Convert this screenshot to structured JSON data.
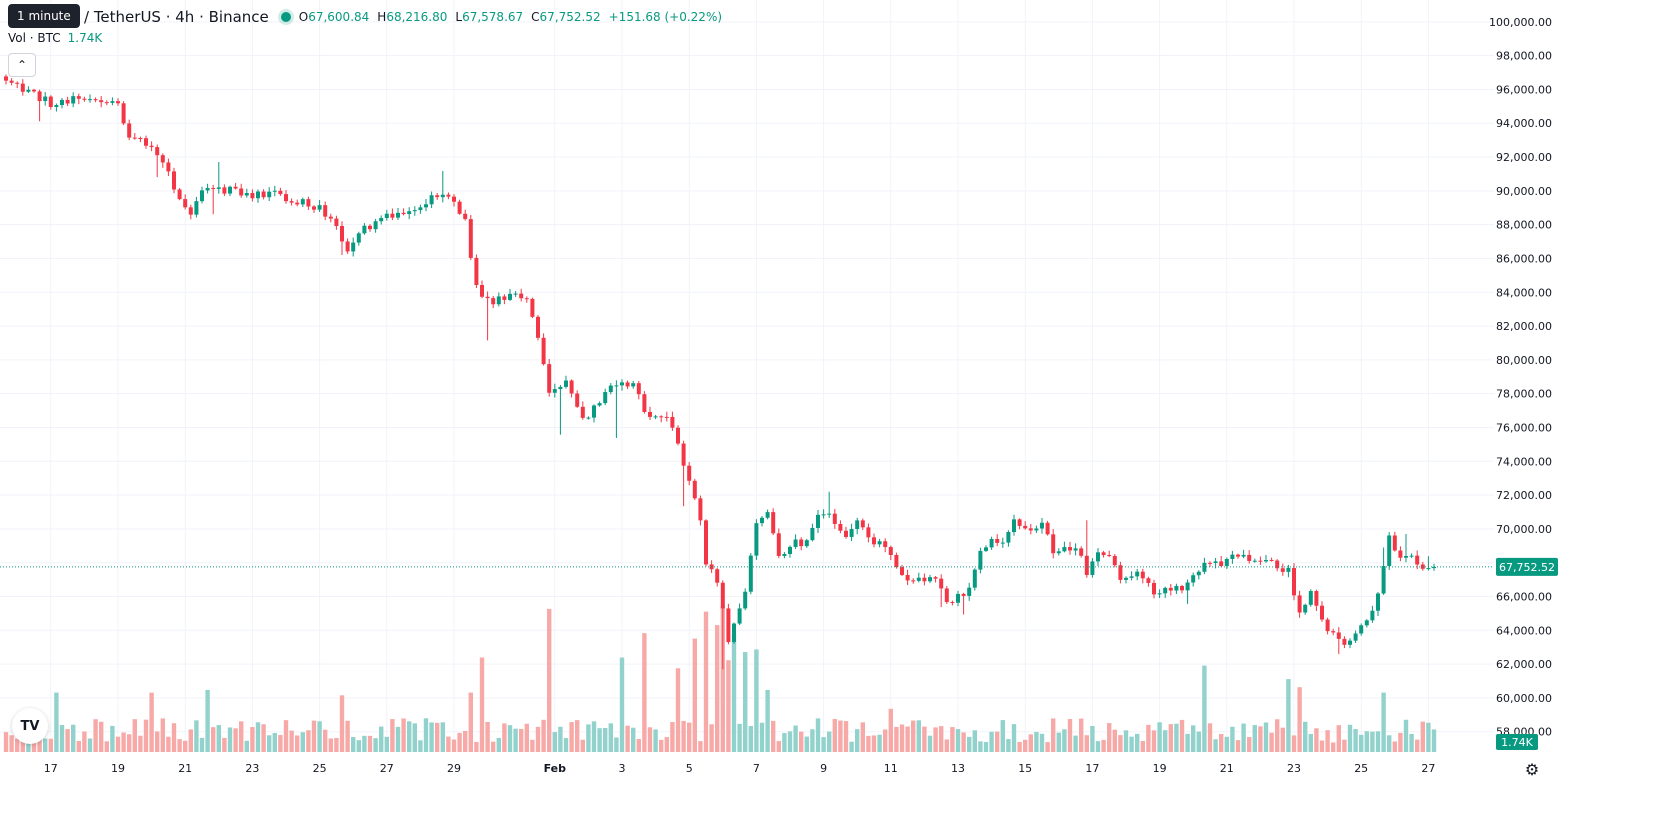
{
  "header": {
    "tooltip": "1 minute",
    "symbol": "/ TetherUS · 4h · Binance",
    "ohlc": {
      "o_label": "O",
      "o": "67,600.84",
      "h_label": "H",
      "h": "68,216.80",
      "l_label": "L",
      "l": "67,578.67",
      "c_label": "C",
      "c": "67,752.52",
      "change": "+151.68 (+0.22%)"
    },
    "volume_label": "Vol · BTC",
    "volume_value": "1.74K"
  },
  "icons": {
    "collapse": "chevron-up-icon",
    "logo": "tradingview-logo",
    "settings": "gear-icon"
  },
  "colors": {
    "up": "#089981",
    "down": "#F23645",
    "up_vol": "#92D2CC",
    "down_vol": "#F7A9A7",
    "grid": "#F0F3FA",
    "last_price": "#089981"
  },
  "chart_data": {
    "type": "candlestick",
    "interval": "4h",
    "price_axis": {
      "ylim": [
        56800,
        100700
      ],
      "ticks": [
        "58,000.00",
        "60,000.00",
        "62,000.00",
        "64,000.00",
        "66,000.00",
        "68,000.00",
        "70,000.00",
        "72,000.00",
        "74,000.00",
        "76,000.00",
        "78,000.00",
        "80,000.00",
        "82,000.00",
        "84,000.00",
        "86,000.00",
        "88,000.00",
        "90,000.00",
        "92,000.00",
        "94,000.00",
        "96,000.00",
        "98,000.00",
        "100,000.00"
      ],
      "tick_values": [
        58000,
        60000,
        62000,
        64000,
        66000,
        68000,
        70000,
        72000,
        74000,
        76000,
        78000,
        80000,
        82000,
        84000,
        86000,
        88000,
        90000,
        92000,
        94000,
        96000,
        98000,
        100000
      ]
    },
    "time_axis": {
      "labels": [
        "17",
        "19",
        "21",
        "23",
        "25",
        "27",
        "29",
        "Feb",
        "3",
        "5",
        "7",
        "9",
        "11",
        "13",
        "15",
        "17",
        "19",
        "21",
        "23",
        "25",
        "27"
      ],
      "bar_index": [
        8,
        20,
        32,
        44,
        56,
        68,
        80,
        98,
        110,
        122,
        134,
        146,
        158,
        170,
        182,
        194,
        206,
        218,
        230,
        242,
        254
      ]
    },
    "anchors": [
      [
        0,
        96500
      ],
      [
        4,
        95800
      ],
      [
        8,
        95200
      ],
      [
        12,
        95400
      ],
      [
        18,
        95200
      ],
      [
        20,
        95000
      ],
      [
        22,
        93200
      ],
      [
        26,
        92800
      ],
      [
        29,
        90900
      ],
      [
        31,
        89700
      ],
      [
        33,
        88600
      ],
      [
        35,
        90200
      ],
      [
        40,
        90000
      ],
      [
        44,
        89800
      ],
      [
        48,
        89900
      ],
      [
        52,
        89400
      ],
      [
        56,
        88900
      ],
      [
        59,
        87900
      ],
      [
        61,
        86600
      ],
      [
        64,
        87800
      ],
      [
        68,
        88500
      ],
      [
        72,
        88600
      ],
      [
        76,
        89700
      ],
      [
        79,
        89800
      ],
      [
        82,
        88200
      ],
      [
        84,
        84200
      ],
      [
        87,
        83300
      ],
      [
        90,
        84000
      ],
      [
        93,
        83800
      ],
      [
        95,
        81400
      ],
      [
        97,
        78200
      ],
      [
        100,
        78800
      ],
      [
        103,
        76400
      ],
      [
        106,
        77400
      ],
      [
        108,
        78600
      ],
      [
        112,
        78500
      ],
      [
        115,
        76500
      ],
      [
        118,
        76700
      ],
      [
        120,
        74800
      ],
      [
        122,
        73000
      ],
      [
        124,
        70400
      ],
      [
        125,
        68100
      ],
      [
        127,
        66700
      ],
      [
        129,
        63400
      ],
      [
        130,
        64600
      ],
      [
        132,
        66200
      ],
      [
        134,
        70300
      ],
      [
        136,
        70900
      ],
      [
        138,
        68200
      ],
      [
        140,
        69100
      ],
      [
        143,
        69200
      ],
      [
        145,
        70900
      ],
      [
        147,
        71000
      ],
      [
        150,
        69300
      ],
      [
        152,
        70500
      ],
      [
        155,
        69300
      ],
      [
        158,
        68600
      ],
      [
        160,
        67300
      ],
      [
        162,
        66900
      ],
      [
        164,
        67000
      ],
      [
        166,
        67300
      ],
      [
        168,
        65500
      ],
      [
        170,
        65900
      ],
      [
        172,
        66600
      ],
      [
        174,
        68900
      ],
      [
        176,
        69200
      ],
      [
        178,
        69400
      ],
      [
        180,
        70500
      ],
      [
        183,
        69900
      ],
      [
        185,
        70600
      ],
      [
        187,
        68800
      ],
      [
        189,
        68800
      ],
      [
        191,
        68800
      ],
      [
        193,
        67500
      ],
      [
        195,
        68400
      ],
      [
        197,
        68300
      ],
      [
        199,
        67100
      ],
      [
        201,
        67300
      ],
      [
        203,
        67300
      ],
      [
        205,
        66300
      ],
      [
        207,
        66300
      ],
      [
        209,
        66600
      ],
      [
        211,
        66600
      ],
      [
        214,
        67900
      ],
      [
        217,
        67800
      ],
      [
        220,
        68500
      ],
      [
        223,
        68200
      ],
      [
        226,
        68000
      ],
      [
        229,
        67500
      ],
      [
        231,
        65000
      ],
      [
        233,
        66100
      ],
      [
        235,
        64600
      ],
      [
        237,
        63800
      ],
      [
        239,
        63000
      ],
      [
        241,
        64000
      ],
      [
        243,
        64600
      ],
      [
        245,
        66000
      ],
      [
        247,
        69400
      ],
      [
        249,
        68500
      ],
      [
        251,
        68400
      ],
      [
        253,
        67700
      ],
      [
        255,
        67800
      ]
    ],
    "wick_spikes": [
      [
        6,
        -1200
      ],
      [
        27,
        -1300
      ],
      [
        37,
        -1500
      ],
      [
        38,
        1500
      ],
      [
        60,
        -800
      ],
      [
        78,
        1400
      ],
      [
        86,
        -2500
      ],
      [
        99,
        -2700
      ],
      [
        109,
        -3100
      ],
      [
        121,
        -2400
      ],
      [
        128,
        -3600
      ],
      [
        147,
        1300
      ],
      [
        167,
        -1100
      ],
      [
        171,
        -1100
      ],
      [
        193,
        2100
      ],
      [
        211,
        -800
      ],
      [
        238,
        -900
      ],
      [
        246,
        1100
      ],
      [
        250,
        1300
      ],
      [
        254,
        700
      ]
    ],
    "volume_spikes": [
      [
        9,
        2.2
      ],
      [
        26,
        2.2
      ],
      [
        36,
        2.3
      ],
      [
        60,
        2.1
      ],
      [
        83,
        2.2
      ],
      [
        85,
        3.5
      ],
      [
        97,
        5.3
      ],
      [
        110,
        3.5
      ],
      [
        114,
        4.4
      ],
      [
        120,
        3.1
      ],
      [
        123,
        4.2
      ],
      [
        125,
        5.2
      ],
      [
        127,
        4.7
      ],
      [
        128,
        5.4
      ],
      [
        129,
        3.4
      ],
      [
        130,
        4.4
      ],
      [
        132,
        3.7
      ],
      [
        134,
        3.8
      ],
      [
        136,
        2.3
      ],
      [
        158,
        1.6
      ],
      [
        214,
        3.2
      ],
      [
        229,
        2.7
      ],
      [
        231,
        2.4
      ],
      [
        246,
        2.2
      ]
    ],
    "bars_count": 256,
    "last_price": 67752.52,
    "last_price_label": "67,752.52",
    "volume_label": "1.74K"
  }
}
